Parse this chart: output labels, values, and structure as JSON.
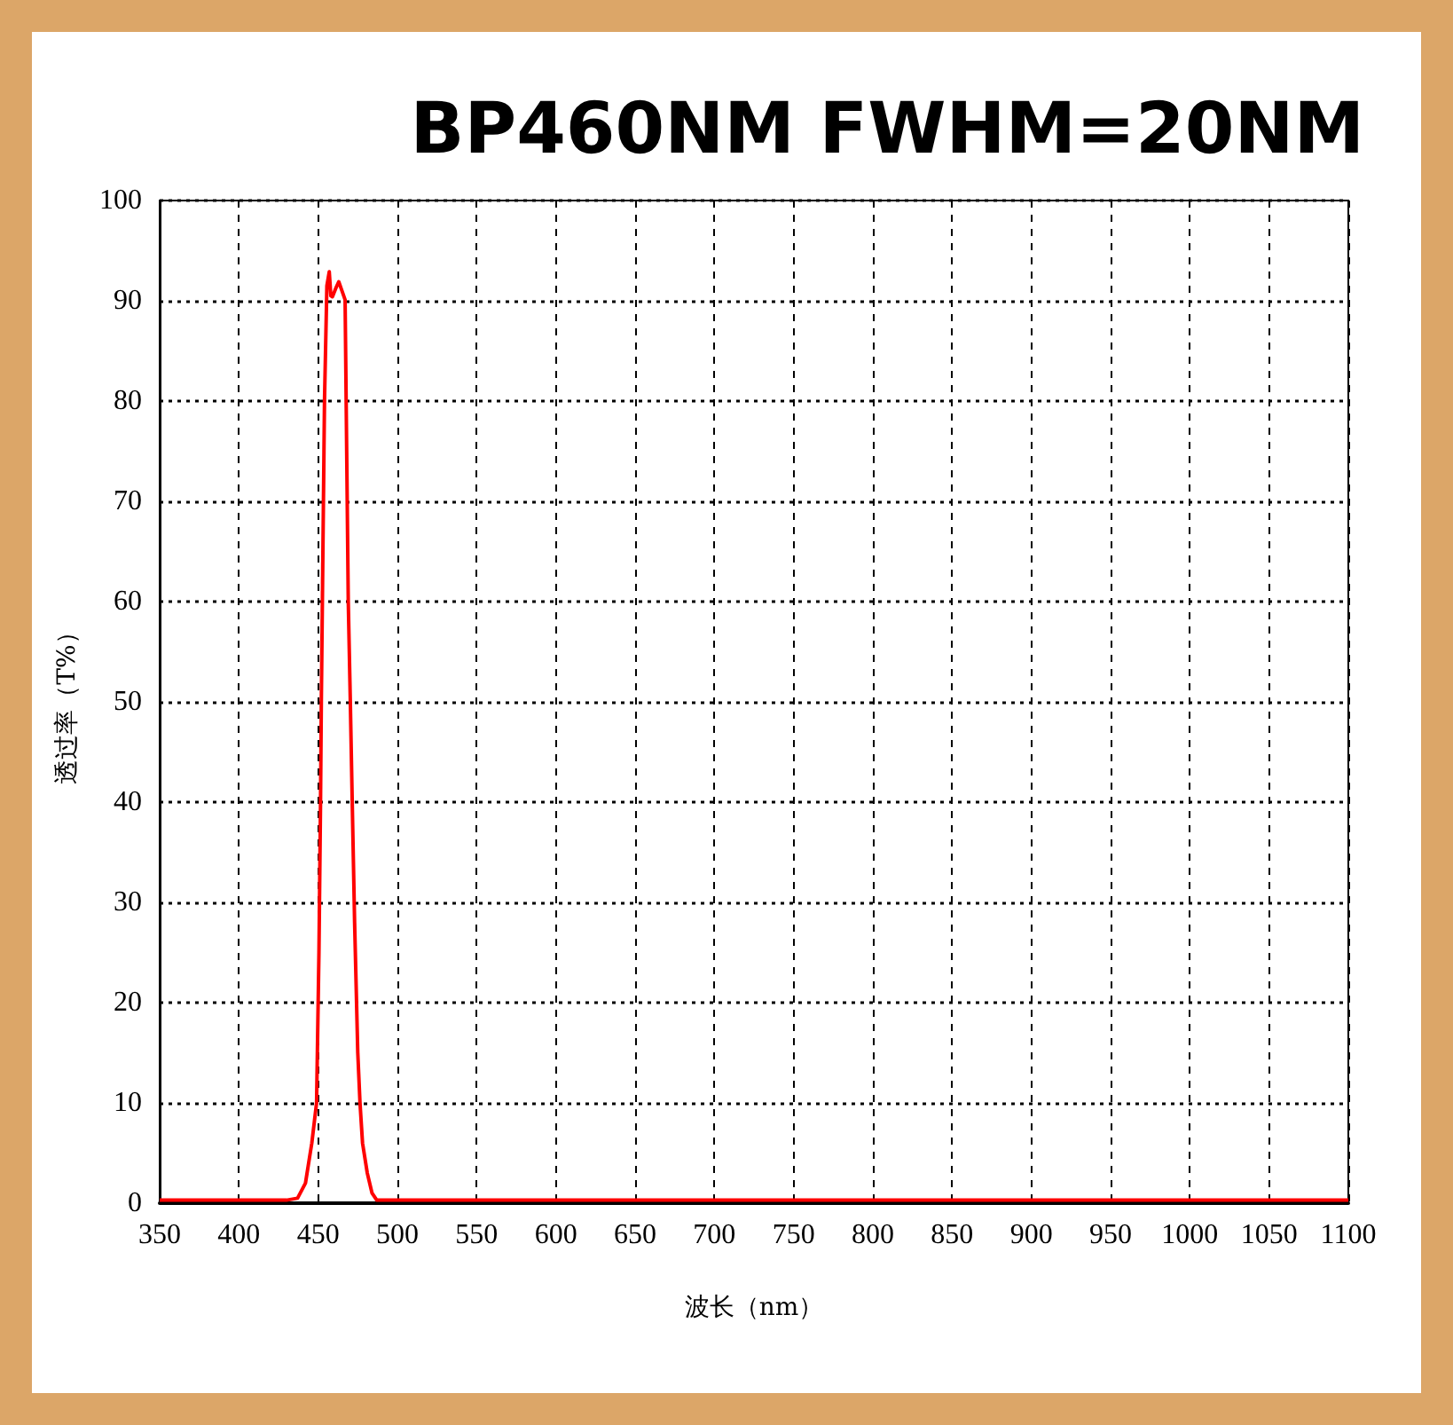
{
  "chart_data": {
    "type": "line",
    "title": "BP460NM FWHM=20NM",
    "xlabel": "波长（nm）",
    "ylabel": "透过率（T%）",
    "x": [
      350,
      430,
      437,
      442,
      446,
      449,
      450.5,
      451.5,
      452,
      453,
      454,
      455.5,
      457,
      458,
      459,
      461,
      463,
      465,
      467,
      468,
      469,
      470.3,
      471.5,
      473,
      475,
      476.4,
      478,
      481,
      484,
      487,
      1100
    ],
    "series": [
      {
        "color": "#ff0000",
        "values": [
          0.3,
          0.3,
          0.5,
          2,
          6,
          10,
          25,
          40,
          50,
          65,
          80,
          91.5,
          92.9,
          90.5,
          90.4,
          91.2,
          91.9,
          91,
          90.1,
          75,
          60,
          50,
          40,
          28,
          15,
          10,
          6,
          3,
          1,
          0.3,
          0.3
        ]
      }
    ],
    "xlim": [
      350,
      1100
    ],
    "xticks": [
      350,
      400,
      450,
      500,
      550,
      600,
      650,
      700,
      750,
      800,
      850,
      900,
      950,
      1000,
      1050,
      1100
    ],
    "ylim": [
      0,
      100
    ],
    "yticks": [
      0,
      10,
      20,
      30,
      40,
      50,
      60,
      70,
      80,
      90,
      100
    ],
    "grid": true,
    "marker": "none",
    "line_style": "solid"
  }
}
